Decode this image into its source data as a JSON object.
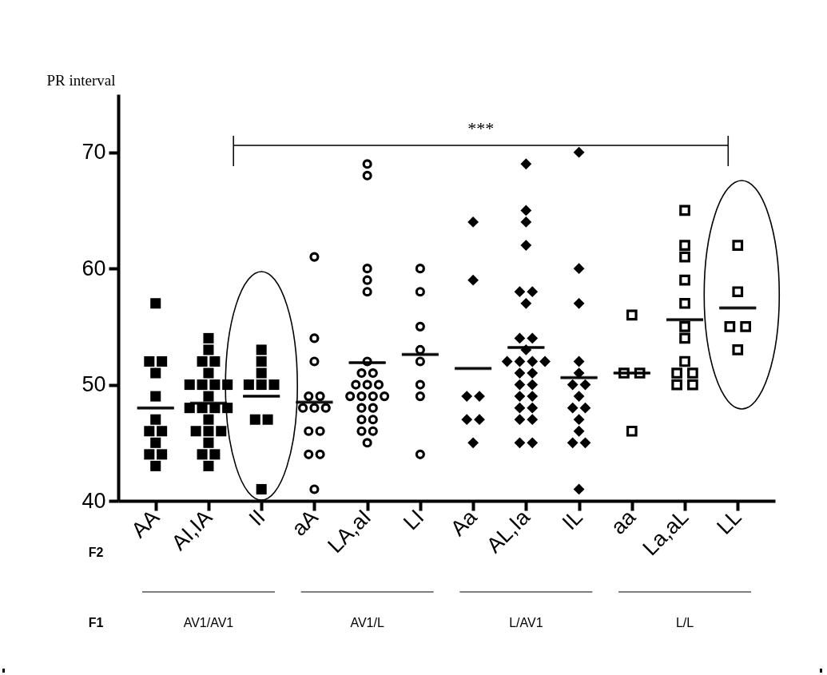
{
  "chart_data": {
    "type": "scatter",
    "ylabel": "PR interval",
    "categories": [
      "AA",
      "AI,IA",
      "II",
      "aA",
      "LA,aI",
      "LI",
      "Aa",
      "AL,Ia",
      "IL",
      "aa",
      "La,aL",
      "LL"
    ],
    "ylim": [
      40,
      75
    ],
    "yticks": [
      40,
      50,
      60,
      70
    ],
    "grid": false,
    "annotations": [
      "***",
      "F2",
      "F1",
      "AV1/AV1",
      "AV1/L",
      "L/AV1",
      "L/L"
    ],
    "series": [
      {
        "color": "#000000",
        "marker": "square",
        "x": [
          "AA",
          "AA",
          "AA",
          "AA",
          "AA",
          "AA",
          "AA",
          "AA",
          "AA",
          "AA",
          "AA",
          "AA",
          "AI,IA",
          "AI,IA",
          "AI,IA",
          "AI,IA",
          "AI,IA",
          "AI,IA",
          "AI,IA",
          "AI,IA",
          "AI,IA",
          "AI,IA",
          "AI,IA",
          "AI,IA",
          "AI,IA",
          "AI,IA",
          "AI,IA",
          "AI,IA",
          "AI,IA",
          "AI,IA",
          "AI,IA",
          "AI,IA",
          "AI,IA",
          "AI,IA",
          "II",
          "II",
          "II",
          "II",
          "II",
          "II",
          "II",
          "II",
          "II"
        ],
        "values": [
          57,
          52,
          52,
          51,
          49,
          47,
          46,
          46,
          45,
          44,
          44,
          43,
          54,
          53,
          52,
          52,
          51,
          50,
          50,
          50,
          50,
          49,
          48,
          48,
          48,
          48,
          47,
          46,
          46,
          46,
          45,
          44,
          44,
          43,
          53,
          52,
          51,
          50,
          50,
          50,
          47,
          47,
          41
        ]
      },
      {
        "color": "#000000",
        "marker": "circle",
        "x": [
          "aA",
          "aA",
          "aA",
          "aA",
          "aA",
          "aA",
          "aA",
          "aA",
          "aA",
          "aA",
          "aA",
          "aA",
          "aA",
          "LA,aI",
          "LA,aI",
          "LA,aI",
          "LA,aI",
          "LA,aI",
          "LA,aI",
          "LA,aI",
          "LA,aI",
          "LA,aI",
          "LA,aI",
          "LA,aI",
          "LA,aI",
          "LA,aI",
          "LA,aI",
          "LA,aI",
          "LA,aI",
          "LA,aI",
          "LA,aI",
          "LA,aI",
          "LA,aI",
          "LA,aI",
          "LA,aI",
          "LI",
          "LI",
          "LI",
          "LI",
          "LI",
          "LI",
          "LI",
          "LI"
        ],
        "values": [
          61,
          54,
          52,
          49,
          49,
          48,
          48,
          48,
          46,
          46,
          44,
          44,
          41,
          69,
          68,
          60,
          59,
          58,
          52,
          51,
          51,
          50,
          50,
          50,
          49,
          49,
          49,
          49,
          48,
          48,
          47,
          47,
          46,
          46,
          45,
          60,
          58,
          55,
          53,
          52,
          50,
          49,
          44
        ]
      },
      {
        "color": "#000000",
        "marker": "diamond",
        "x": [
          "Aa",
          "Aa",
          "Aa",
          "Aa",
          "Aa",
          "Aa",
          "Aa",
          "AL,Ia",
          "AL,Ia",
          "AL,Ia",
          "AL,Ia",
          "AL,Ia",
          "AL,Ia",
          "AL,Ia",
          "AL,Ia",
          "AL,Ia",
          "AL,Ia",
          "AL,Ia",
          "AL,Ia",
          "AL,Ia",
          "AL,Ia",
          "AL,Ia",
          "AL,Ia",
          "AL,Ia",
          "AL,Ia",
          "AL,Ia",
          "AL,Ia",
          "AL,Ia",
          "AL,Ia",
          "AL,Ia",
          "AL,Ia",
          "AL,Ia",
          "AL,Ia",
          "IL",
          "IL",
          "IL",
          "IL",
          "IL",
          "IL",
          "IL",
          "IL",
          "IL",
          "IL",
          "IL",
          "IL",
          "IL",
          "IL",
          "IL"
        ],
        "values": [
          64,
          59,
          49,
          49,
          47,
          47,
          45,
          69,
          65,
          64,
          62,
          58,
          58,
          57,
          54,
          54,
          53,
          52,
          52,
          52,
          52,
          51,
          51,
          50,
          50,
          49,
          49,
          48,
          48,
          47,
          47,
          45,
          45,
          70,
          60,
          57,
          52,
          51,
          50,
          50,
          49,
          48,
          48,
          47,
          46,
          45,
          45,
          41
        ]
      },
      {
        "color": "#000000",
        "marker": "square",
        "x": [
          "aa",
          "aa",
          "aa",
          "aa",
          "La,aL",
          "La,aL",
          "La,aL",
          "La,aL",
          "La,aL",
          "La,aL",
          "La,aL",
          "La,aL",
          "La,aL",
          "La,aL",
          "La,aL",
          "La,aL",
          "LL",
          "LL",
          "LL",
          "LL",
          "LL"
        ],
        "values": [
          56,
          51,
          51,
          46,
          65,
          62,
          61,
          59,
          57,
          55,
          54,
          52,
          51,
          51,
          50,
          50,
          62,
          58,
          55,
          55,
          53
        ]
      },
      {
        "type": "box",
        "color": "#000000",
        "boxes": [
          {
            "low": 48,
            "q1": 48,
            "median": 48,
            "q3": 48,
            "high": 48
          },
          {
            "low": 48.4,
            "q1": 48.4,
            "median": 48.4,
            "q3": 48.4,
            "high": 48.4
          },
          {
            "low": 49,
            "q1": 49,
            "median": 49,
            "q3": 49,
            "high": 49
          },
          {
            "low": 48.5,
            "q1": 48.5,
            "median": 48.5,
            "q3": 48.5,
            "high": 48.5
          },
          {
            "low": 51.9,
            "q1": 51.9,
            "median": 51.9,
            "q3": 51.9,
            "high": 51.9
          },
          {
            "low": 52.6,
            "q1": 52.6,
            "median": 52.6,
            "q3": 52.6,
            "high": 52.6
          },
          {
            "low": 51.4,
            "q1": 51.4,
            "median": 51.4,
            "q3": 51.4,
            "high": 51.4
          },
          {
            "low": 53.2,
            "q1": 53.2,
            "median": 53.2,
            "q3": 53.2,
            "high": 53.2
          },
          {
            "low": 50.6,
            "q1": 50.6,
            "median": 50.6,
            "q3": 50.6,
            "high": 50.6
          },
          {
            "low": 51,
            "q1": 51,
            "median": 51,
            "q3": 51,
            "high": 51
          },
          {
            "low": 55.6,
            "q1": 55.6,
            "median": 55.6,
            "q3": 55.6,
            "high": 55.6
          },
          {
            "low": 56.6,
            "q1": 56.6,
            "median": 56.6,
            "q3": 56.6,
            "high": 56.6
          }
        ]
      }
    ]
  }
}
